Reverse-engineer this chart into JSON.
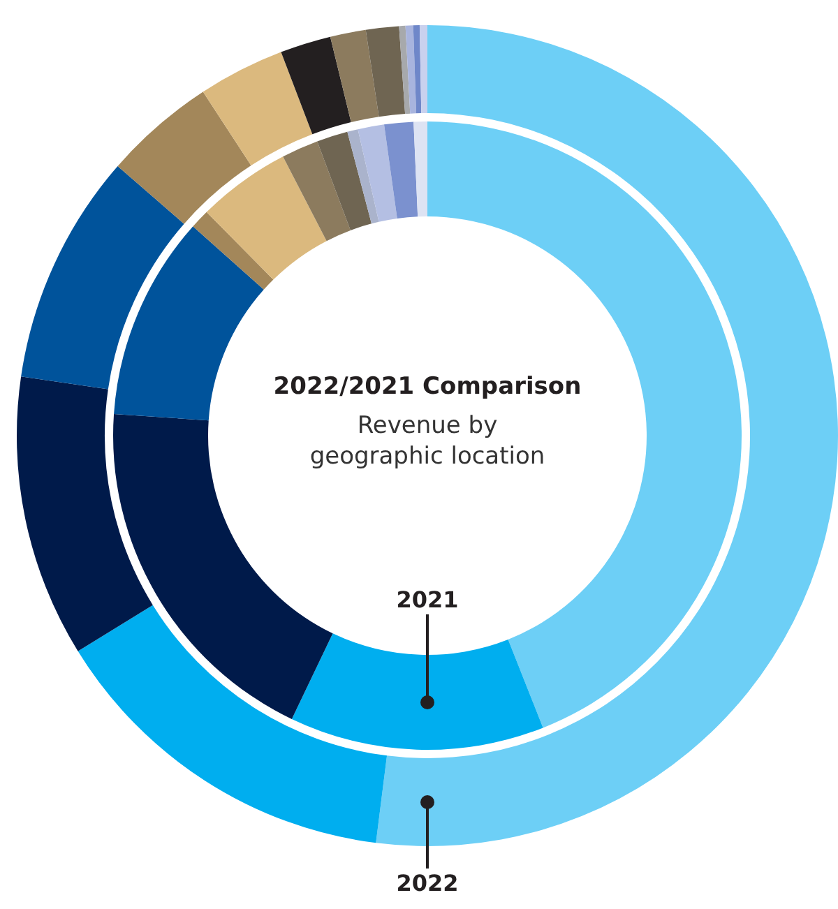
{
  "chart_data": {
    "type": "donut",
    "title": "2022/2021 Comparison",
    "subtitle": "Revenue by geographic location",
    "categories": [
      null,
      null,
      null,
      null,
      null,
      null,
      null,
      null,
      null,
      null,
      null,
      null,
      null
    ],
    "series": [
      {
        "name": "2021",
        "values": [
          44.0,
          13.1,
          19.0,
          10.5,
          1.0,
          4.8,
          null,
          1.9,
          1.6,
          0.55,
          1.35,
          1.5,
          0.7
        ],
        "colors": [
          "#6dcff6",
          "#00aeef",
          "#001a4a",
          "#00539b",
          "#a3875a",
          "#dbb97e",
          null,
          "#8c7b5e",
          "#6f6552",
          "#aab3cc",
          "#b4bfe3",
          "#7b91cf",
          "#dde3f3"
        ]
      },
      {
        "name": "2022",
        "values": [
          52.0,
          14.2,
          11.1,
          9.1,
          4.4,
          3.4,
          2.0,
          1.4,
          1.3,
          0.25,
          0.3,
          0.25,
          0.3
        ],
        "colors": [
          "#6dcff6",
          "#00aeef",
          "#001a4a",
          "#00539b",
          "#a3875a",
          "#dbb97e",
          "#231f20",
          "#8c7b5e",
          "#6f6552",
          "#a7a9ac",
          "#a8b4de",
          "#6f87c9",
          "#c9d1ee"
        ]
      }
    ]
  }
}
